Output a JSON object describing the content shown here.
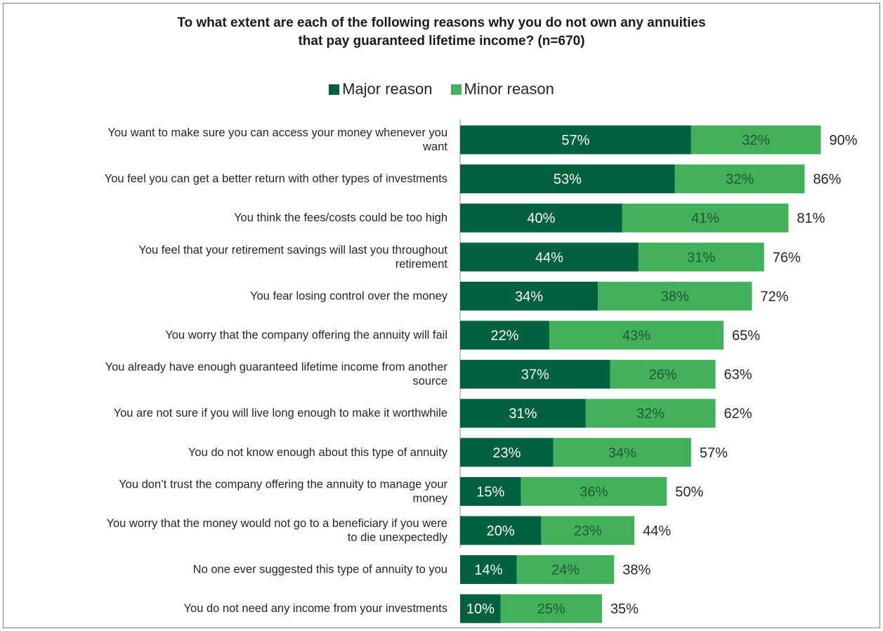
{
  "title_lines": [
    "To what extent are each of the following reasons why you do not own any annuities",
    "that pay guaranteed lifetime income? (n=670)"
  ],
  "legend": [
    {
      "label": "Major reason",
      "color": "#00613e"
    },
    {
      "label": "Minor reason",
      "color": "#43b05c"
    }
  ],
  "chart_data": {
    "type": "bar",
    "orientation": "horizontal",
    "stacked": true,
    "title": "To what extent are each of the following reasons why you do not own any annuities that pay guaranteed lifetime income? (n=670)",
    "categories": [
      [
        "You want to make sure you can access your money whenever you",
        "want"
      ],
      [
        "You feel you can get a better return with other types of investments"
      ],
      [
        "You think the fees/costs could be too high"
      ],
      [
        "You feel that your retirement savings will last you throughout",
        "retirement"
      ],
      [
        "You fear losing control over the money"
      ],
      [
        "You worry that the company offering the annuity will fail"
      ],
      [
        "You already have enough guaranteed lifetime income from another",
        "source"
      ],
      [
        "You are not sure if you will live long enough to make it worthwhile"
      ],
      [
        "You do not know enough about this type of annuity"
      ],
      [
        "You don’t trust the company offering the annuity to manage your",
        "money"
      ],
      [
        "You worry that the money would not go to a beneficiary if you were",
        "to die unexpectedly"
      ],
      [
        "No one ever suggested this type of annuity to you"
      ],
      [
        "You do not need any income from your investments"
      ]
    ],
    "series": [
      {
        "name": "Major reason",
        "color": "#00613e",
        "label_color": "#ffffff",
        "values": [
          57,
          53,
          40,
          44,
          34,
          22,
          37,
          31,
          23,
          15,
          20,
          14,
          10
        ],
        "labels": [
          "57%",
          "53%",
          "40%",
          "44%",
          "34%",
          "22%",
          "37%",
          "31%",
          "23%",
          "15%",
          "20%",
          "14%",
          "10%"
        ]
      },
      {
        "name": "Minor reason",
        "color": "#43b05c",
        "label_color": "#1f5a30",
        "values": [
          32,
          32,
          41,
          31,
          38,
          43,
          26,
          32,
          34,
          36,
          23,
          24,
          25
        ],
        "labels": [
          "32%",
          "32%",
          "41%",
          "31%",
          "38%",
          "43%",
          "26%",
          "32%",
          "34%",
          "36%",
          "23%",
          "24%",
          "25%"
        ]
      }
    ],
    "totals": [
      90,
      86,
      81,
      76,
      72,
      65,
      63,
      62,
      57,
      50,
      44,
      38,
      35
    ],
    "total_labels": [
      "90%",
      "86%",
      "81%",
      "76%",
      "72%",
      "65%",
      "63%",
      "62%",
      "57%",
      "50%",
      "44%",
      "38%",
      "35%"
    ],
    "xlim": [
      0,
      100
    ],
    "grid": false,
    "legend_position": "top-center"
  }
}
